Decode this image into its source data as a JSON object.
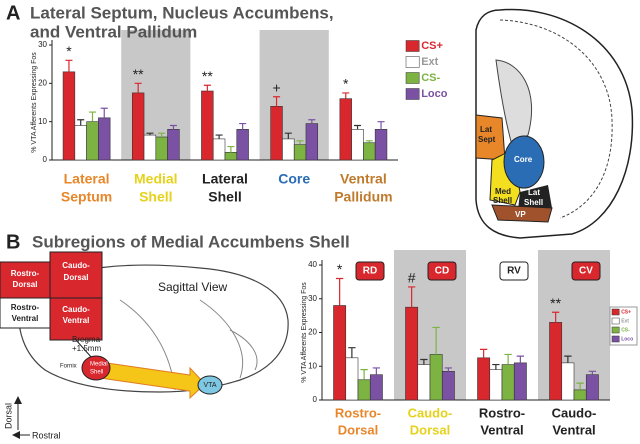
{
  "panels": [
    {
      "label": "A"
    },
    {
      "label": "B"
    }
  ],
  "chart_data": [
    {
      "type": "bar",
      "title": [
        "Lateral Septum, Nucleus Accumbens,",
        "and Ventral Pallidum"
      ],
      "y_label": "% VTA Afferents Expressing Fos",
      "categories": [
        [
          "Lateral",
          "Septum"
        ],
        [
          "Medial",
          "Shell"
        ],
        [
          "Lateral",
          "Shell"
        ],
        [
          "Core"
        ],
        [
          "Ventral",
          "Pallidum"
        ]
      ],
      "category_colors": [
        "#e8872a",
        "#e6d21c",
        "#222222",
        "#2a6db5",
        "#c07a2c"
      ],
      "shaded": [
        false,
        true,
        false,
        true,
        false
      ],
      "annotations": [
        "*",
        "**",
        "**",
        "+",
        "*"
      ],
      "series": [
        {
          "name": "CS+",
          "color": "#d9272e",
          "values": [
            23,
            17.5,
            18,
            14,
            16
          ],
          "errors": [
            3,
            2.5,
            1.5,
            2.5,
            1.5
          ]
        },
        {
          "name": "Ext",
          "color": "#ffffff",
          "values": [
            9,
            6.5,
            5.5,
            5.5,
            8
          ],
          "errors": [
            1.5,
            0.5,
            1,
            1.5,
            1
          ]
        },
        {
          "name": "CS-",
          "color": "#7cb342",
          "values": [
            10,
            6,
            2,
            4,
            4.5
          ],
          "errors": [
            2.5,
            1,
            1.5,
            1,
            0.5
          ]
        },
        {
          "name": "Loco",
          "color": "#7b52a3",
          "values": [
            11,
            8,
            8,
            9.5,
            8
          ],
          "errors": [
            2.5,
            1,
            1.5,
            1,
            2
          ]
        }
      ],
      "ylim": [
        0,
        30
      ],
      "yticks": [
        0,
        10,
        20,
        30
      ],
      "legend": "right"
    },
    {
      "type": "bar",
      "title": [
        "Subregions of Medial Accumbens Shell"
      ],
      "y_label": "% VTA Afferents Expressing Fos",
      "categories": [
        [
          "Rostro-",
          "Dorsal"
        ],
        [
          "Caudo-",
          "Dorsal"
        ],
        [
          "Rostro-",
          "Ventral"
        ],
        [
          "Caudo-",
          "Ventral"
        ]
      ],
      "category_colors": [
        "#e8872a",
        "#e6d21c",
        "#222222",
        "#222222"
      ],
      "shaded": [
        false,
        true,
        false,
        true
      ],
      "annotations": [
        "*",
        "#",
        null,
        "**"
      ],
      "region_tags": [
        "RD",
        "CD",
        "RV",
        "CV"
      ],
      "series": [
        {
          "name": "CS+",
          "color": "#d9272e",
          "values": [
            28,
            27.5,
            12.5,
            23
          ],
          "errors": [
            8,
            6,
            2.5,
            3
          ]
        },
        {
          "name": "Ext",
          "color": "#ffffff",
          "values": [
            12.5,
            10.5,
            9,
            11
          ],
          "errors": [
            3,
            1.5,
            1.5,
            2
          ]
        },
        {
          "name": "CS-",
          "color": "#7cb342",
          "values": [
            6,
            13.5,
            10.5,
            3
          ],
          "errors": [
            3,
            8,
            3,
            2
          ]
        },
        {
          "name": "Loco",
          "color": "#7b52a3",
          "values": [
            7.5,
            8.5,
            11,
            7.5
          ],
          "errors": [
            2,
            1,
            2,
            1
          ]
        }
      ],
      "ylim": [
        0,
        40
      ],
      "yticks": [
        0,
        10,
        20,
        30,
        40
      ],
      "legend": "upper right"
    }
  ],
  "coronal_diagram": {
    "labels": [
      "Lat",
      "Sept",
      "Core",
      "Med",
      "Shell",
      "Lat",
      "Shell",
      "VP"
    ]
  },
  "sagittal_diagram": {
    "blocks": [
      "Rostro-",
      "Dorsal",
      "Caudo-",
      "Dorsal",
      "Rostro-",
      "Ventral",
      "Caudo-",
      "Ventral"
    ],
    "view": "Sagittal View",
    "bregma": [
      "Bregma",
      "+1.5mm"
    ],
    "fornix": "Fornix",
    "shell": [
      "Medial",
      "Shell"
    ],
    "vta": "VTA",
    "dorsal": "Dorsal",
    "rostral": "Rostral"
  }
}
